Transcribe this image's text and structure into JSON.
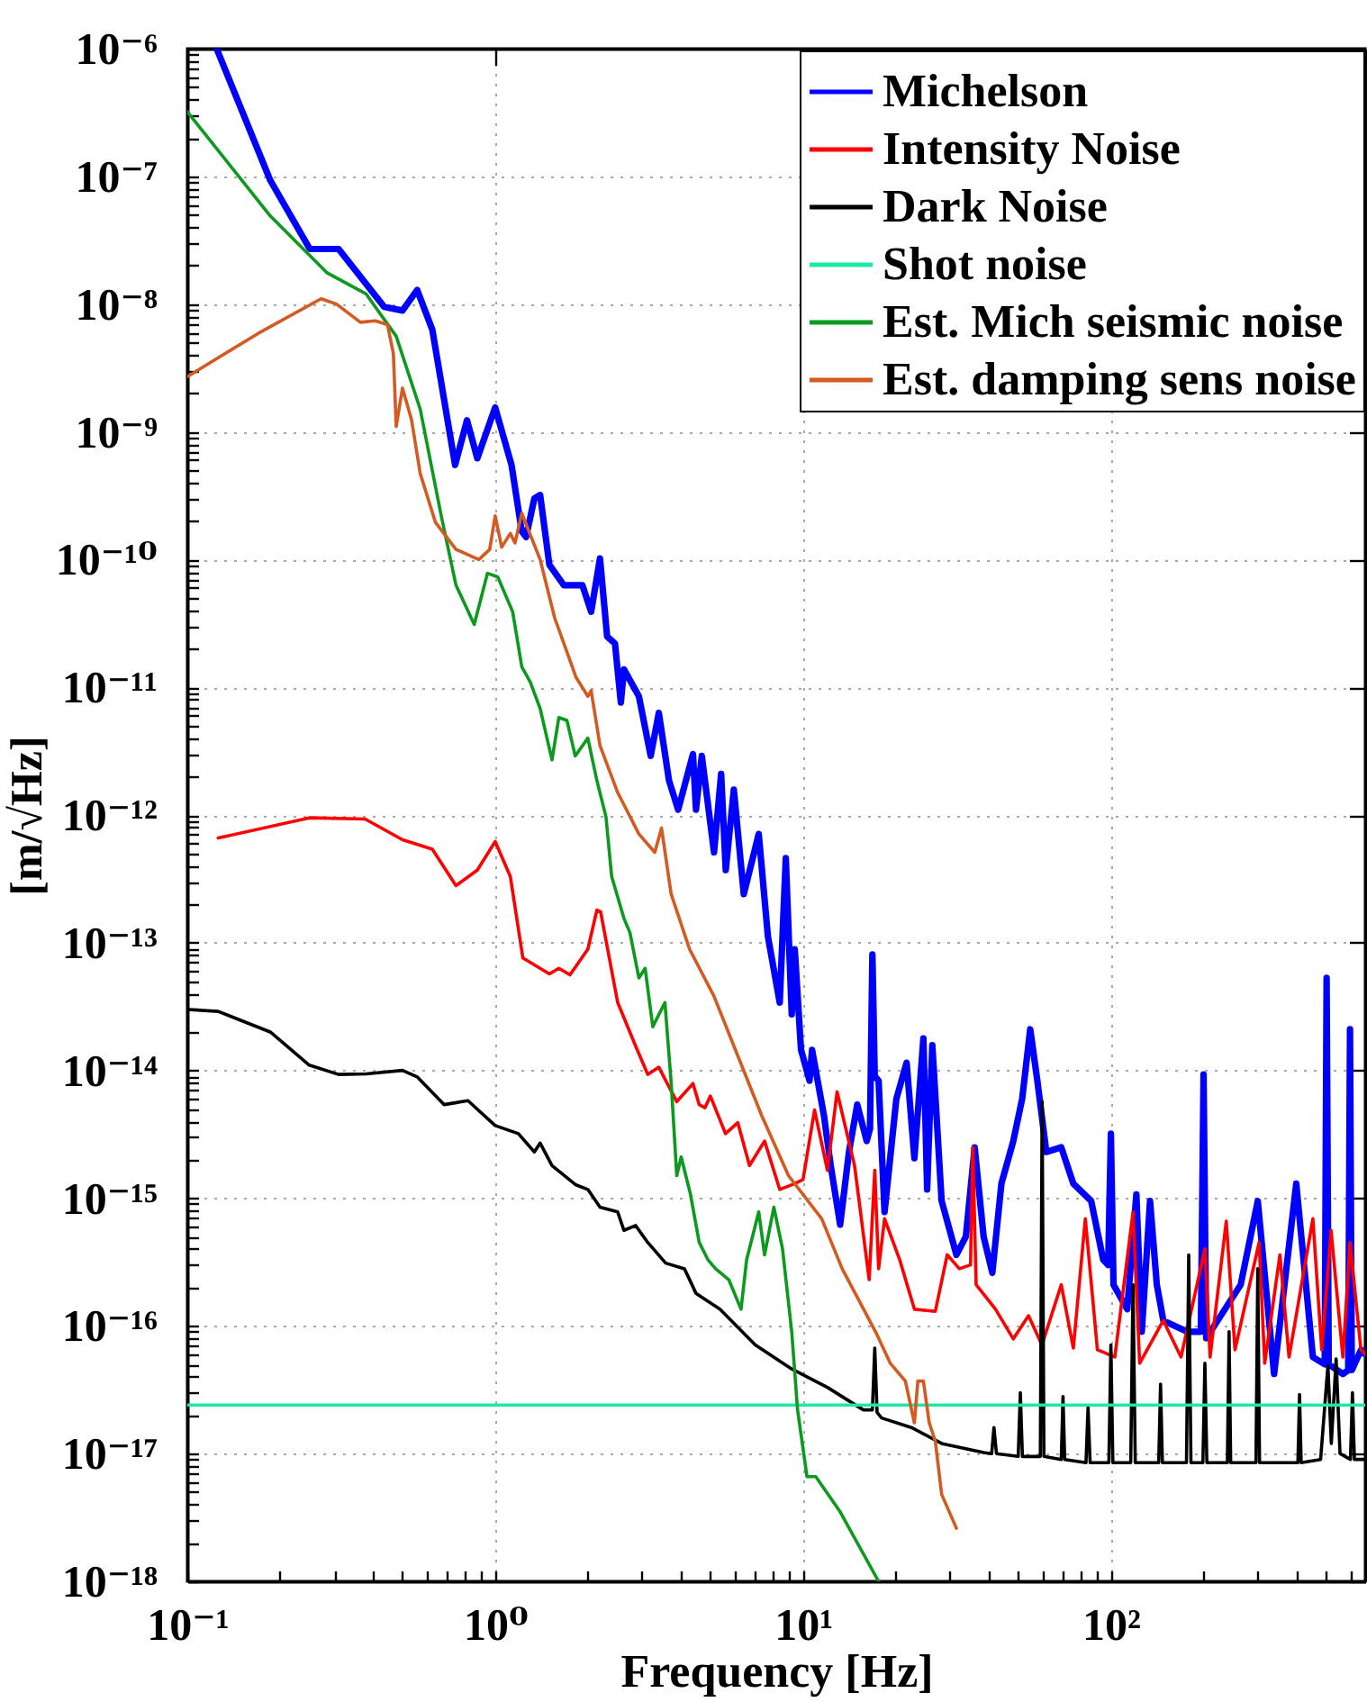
{
  "chart_data": {
    "type": "line",
    "xlabel": "Frequency [Hz]",
    "ylabel": "[m/√Hz]",
    "log": "xy",
    "grid": true,
    "legend": "top right",
    "xlim": [
      0.1,
      670
    ],
    "ylim": [
      1e-18,
      1e-06
    ],
    "xticks": [
      {
        "value": 0.1,
        "label": "10⁻¹"
      },
      {
        "value": 0.2,
        "label": null
      },
      {
        "value": 0.3,
        "label": null
      },
      {
        "value": 0.4,
        "label": null
      },
      {
        "value": 0.5,
        "label": null
      },
      {
        "value": 0.6,
        "label": null
      },
      {
        "value": 0.7,
        "label": null
      },
      {
        "value": 0.8,
        "label": null
      },
      {
        "value": 0.9,
        "label": null
      },
      {
        "value": 1,
        "label": "10⁰"
      },
      {
        "value": 2,
        "label": null
      },
      {
        "value": 3,
        "label": null
      },
      {
        "value": 4,
        "label": null
      },
      {
        "value": 5,
        "label": null
      },
      {
        "value": 6,
        "label": null
      },
      {
        "value": 7,
        "label": null
      },
      {
        "value": 8,
        "label": null
      },
      {
        "value": 9,
        "label": null
      },
      {
        "value": 10,
        "label": "10¹"
      },
      {
        "value": 20,
        "label": null
      },
      {
        "value": 30,
        "label": null
      },
      {
        "value": 40,
        "label": null
      },
      {
        "value": 50,
        "label": null
      },
      {
        "value": 60,
        "label": null
      },
      {
        "value": 70,
        "label": null
      },
      {
        "value": 80,
        "label": null
      },
      {
        "value": 90,
        "label": null
      },
      {
        "value": 100,
        "label": "10²"
      },
      {
        "value": 200,
        "label": null
      },
      {
        "value": 300,
        "label": null
      },
      {
        "value": 400,
        "label": null
      },
      {
        "value": 500,
        "label": null
      },
      {
        "value": 600,
        "label": null
      }
    ],
    "yticks": [
      {
        "value": 1e-18,
        "label": "10⁻¹⁸"
      },
      {
        "value": 2e-18,
        "label": null
      },
      {
        "value": 3e-18,
        "label": null
      },
      {
        "value": 4e-18,
        "label": null
      },
      {
        "value": 5e-18,
        "label": null
      },
      {
        "value": 6e-18,
        "label": null
      },
      {
        "value": 7e-18,
        "label": null
      },
      {
        "value": 8e-18,
        "label": null
      },
      {
        "value": 9e-18,
        "label": null
      },
      {
        "value": 1e-17,
        "label": "10⁻¹⁷"
      },
      {
        "value": 2e-17,
        "label": null
      },
      {
        "value": 3e-17,
        "label": null
      },
      {
        "value": 4e-17,
        "label": null
      },
      {
        "value": 5e-17,
        "label": null
      },
      {
        "value": 6e-17,
        "label": null
      },
      {
        "value": 7e-17,
        "label": null
      },
      {
        "value": 8e-17,
        "label": null
      },
      {
        "value": 9e-17,
        "label": null
      },
      {
        "value": 1e-16,
        "label": "10⁻¹⁶"
      },
      {
        "value": 2e-16,
        "label": null
      },
      {
        "value": 3e-16,
        "label": null
      },
      {
        "value": 4e-16,
        "label": null
      },
      {
        "value": 5e-16,
        "label": null
      },
      {
        "value": 6e-16,
        "label": null
      },
      {
        "value": 7e-16,
        "label": null
      },
      {
        "value": 8e-16,
        "label": null
      },
      {
        "value": 9e-16,
        "label": null
      },
      {
        "value": 1e-15,
        "label": "10⁻¹⁵"
      },
      {
        "value": 2e-15,
        "label": null
      },
      {
        "value": 3e-15,
        "label": null
      },
      {
        "value": 4e-15,
        "label": null
      },
      {
        "value": 5e-15,
        "label": null
      },
      {
        "value": 6e-15,
        "label": null
      },
      {
        "value": 7e-15,
        "label": null
      },
      {
        "value": 8e-15,
        "label": null
      },
      {
        "value": 9e-15,
        "label": null
      },
      {
        "value": 1e-14,
        "label": "10⁻¹⁴"
      },
      {
        "value": 2e-14,
        "label": null
      },
      {
        "value": 3e-14,
        "label": null
      },
      {
        "value": 4e-14,
        "label": null
      },
      {
        "value": 5e-14,
        "label": null
      },
      {
        "value": 6e-14,
        "label": null
      },
      {
        "value": 7e-14,
        "label": null
      },
      {
        "value": 8e-14,
        "label": null
      },
      {
        "value": 9e-14,
        "label": null
      },
      {
        "value": 1e-13,
        "label": "10⁻¹³"
      },
      {
        "value": 2e-13,
        "label": null
      },
      {
        "value": 3e-13,
        "label": null
      },
      {
        "value": 4e-13,
        "label": null
      },
      {
        "value": 5e-13,
        "label": null
      },
      {
        "value": 6e-13,
        "label": null
      },
      {
        "value": 7e-13,
        "label": null
      },
      {
        "value": 8e-13,
        "label": null
      },
      {
        "value": 9e-13,
        "label": null
      },
      {
        "value": 1e-12,
        "label": "10⁻¹²"
      },
      {
        "value": 2e-12,
        "label": null
      },
      {
        "value": 3e-12,
        "label": null
      },
      {
        "value": 4e-12,
        "label": null
      },
      {
        "value": 5e-12,
        "label": null
      },
      {
        "value": 6e-12,
        "label": null
      },
      {
        "value": 7e-12,
        "label": null
      },
      {
        "value": 8e-12,
        "label": null
      },
      {
        "value": 9e-12,
        "label": null
      },
      {
        "value": 1e-11,
        "label": "10⁻¹¹"
      },
      {
        "value": 2e-11,
        "label": null
      },
      {
        "value": 3e-11,
        "label": null
      },
      {
        "value": 4e-11,
        "label": null
      },
      {
        "value": 5e-11,
        "label": null
      },
      {
        "value": 6e-11,
        "label": null
      },
      {
        "value": 7e-11,
        "label": null
      },
      {
        "value": 8e-11,
        "label": null
      },
      {
        "value": 9e-11,
        "label": null
      },
      {
        "value": 1e-10,
        "label": "10⁻¹⁰"
      },
      {
        "value": 2e-10,
        "label": null
      },
      {
        "value": 3e-10,
        "label": null
      },
      {
        "value": 4e-10,
        "label": null
      },
      {
        "value": 5e-10,
        "label": null
      },
      {
        "value": 6e-10,
        "label": null
      },
      {
        "value": 7e-10,
        "label": null
      },
      {
        "value": 8e-10,
        "label": null
      },
      {
        "value": 9e-10,
        "label": null
      },
      {
        "value": 1e-09,
        "label": "10⁻⁹"
      },
      {
        "value": 2e-09,
        "label": null
      },
      {
        "value": 3e-09,
        "label": null
      },
      {
        "value": 4e-09,
        "label": null
      },
      {
        "value": 5e-09,
        "label": null
      },
      {
        "value": 6e-09,
        "label": null
      },
      {
        "value": 7e-09,
        "label": null
      },
      {
        "value": 8e-09,
        "label": null
      },
      {
        "value": 9e-09,
        "label": null
      },
      {
        "value": 1e-08,
        "label": "10⁻⁸"
      },
      {
        "value": 2e-08,
        "label": null
      },
      {
        "value": 3e-08,
        "label": null
      },
      {
        "value": 4e-08,
        "label": null
      },
      {
        "value": 5e-08,
        "label": null
      },
      {
        "value": 6e-08,
        "label": null
      },
      {
        "value": 7e-08,
        "label": null
      },
      {
        "value": 8e-08,
        "label": null
      },
      {
        "value": 9e-08,
        "label": null
      },
      {
        "value": 1e-07,
        "label": "10⁻⁷"
      },
      {
        "value": 2e-07,
        "label": null
      },
      {
        "value": 3e-07,
        "label": null
      },
      {
        "value": 4e-07,
        "label": null
      },
      {
        "value": 5e-07,
        "label": null
      },
      {
        "value": 6e-07,
        "label": null
      },
      {
        "value": 7e-07,
        "label": null
      },
      {
        "value": 8e-07,
        "label": null
      },
      {
        "value": 9e-07,
        "label": null
      },
      {
        "value": 1e-06,
        "label": "10⁻⁶"
      }
    ],
    "series": [
      {
        "name": "Michelson",
        "color": "#0000ff",
        "x": [
          0.1245,
          0.186,
          0.25,
          0.31,
          0.436,
          0.5,
          0.558,
          0.625,
          0.741,
          0.81,
          0.875,
          1.0,
          1.13,
          1.22,
          1.26,
          1.34,
          1.4,
          1.5,
          1.67,
          1.92,
          2.05,
          2.19,
          2.31,
          2.45,
          2.56,
          2.62,
          2.93,
          3.2,
          3.4,
          3.67,
          3.93,
          4.39,
          4.49,
          4.69,
          5.14,
          5.42,
          5.61,
          5.96,
          6.42,
          7.18,
          7.69,
          8.4,
          8.79,
          9.19,
          9.4,
          9.85,
          10.5,
          10.7,
          11.7,
          12.3,
          13.2,
          14.1,
          15.0,
          16.1,
          16.5,
          16.8,
          17.1,
          17.6,
          18.4,
          20.1,
          21.7,
          23.0,
          24.6,
          25.3,
          26.3,
          28.2,
          31.5,
          33.8,
          36.1,
          38.6,
          41.2,
          44.1,
          48.2,
          51.5,
          54.7,
          57.7,
          61.7,
          69,
          75.5,
          86.3,
          94.4,
          98,
          100,
          102,
          113,
          121,
          126,
          134,
          141,
          148,
          177,
          196,
          200,
          204,
          264,
          300,
          339,
          400,
          453,
          495,
          502,
          510,
          567,
          590,
          598,
          606,
          650,
          670
        ],
        "values": [
          1e-06,
          9.3e-08,
          2.7e-08,
          2.7e-08,
          9.5e-09,
          8.9e-09,
          1.29e-08,
          6.3e-09,
          5.5e-10,
          1.23e-09,
          6.2e-10,
          1.55e-09,
          5.5e-10,
          1.66e-10,
          1.5e-10,
          3e-10,
          3.2e-10,
          9.1e-11,
          6.3e-11,
          6.3e-11,
          3.9e-11,
          1.02e-10,
          2.5e-11,
          2.2e-11,
          7.6e-12,
          1.38e-11,
          8.5e-12,
          2.9e-12,
          6.3e-12,
          1.86e-12,
          1.1e-12,
          3e-12,
          1.1e-12,
          2.9e-12,
          5.1e-13,
          2.1e-12,
          3.7e-13,
          1.58e-12,
          2.4e-13,
          7.1e-13,
          1.12e-13,
          3.4e-14,
          4.6e-13,
          2.75e-14,
          8.9e-14,
          1.45e-14,
          8.3e-15,
          1.45e-14,
          4.4e-15,
          1.8e-15,
          6.2e-16,
          2.3e-15,
          5.4e-15,
          2.8e-15,
          3.5e-15,
          8.1e-14,
          9e-15,
          8.3e-15,
          7.8e-16,
          6e-15,
          1.15e-14,
          2.05e-15,
          1.78e-14,
          1.17e-15,
          1.58e-14,
          9.5e-16,
          3.6e-16,
          5e-16,
          2.5e-15,
          5e-16,
          2.6e-16,
          1.3e-15,
          2.8e-15,
          6e-15,
          2.1e-14,
          8.3e-15,
          2.3e-15,
          2.5e-15,
          1.3e-15,
          9.5e-16,
          3.3e-16,
          3e-16,
          3.2e-15,
          2.1e-16,
          1.35e-16,
          1.07e-15,
          9e-17,
          9.5e-16,
          2.1e-16,
          1.1e-16,
          9e-17,
          9e-17,
          9.3e-15,
          8e-17,
          2.1e-16,
          9.5e-16,
          4.2e-17,
          1.3e-15,
          5.7e-17,
          5e-17,
          5.3e-14,
          5e-17,
          4.2e-17,
          4.5e-17,
          2.1e-14,
          4.5e-17,
          6.5e-17,
          6e-17
        ]
      },
      {
        "name": "Intensity Noise",
        "color": "#ff0000",
        "x": [
          0.126,
          0.249,
          0.378,
          0.5,
          0.625,
          0.746,
          0.875,
          1.0,
          1.12,
          1.23,
          1.5,
          1.61,
          1.75,
          2.0,
          2.14,
          2.2,
          2.5,
          2.85,
          3.13,
          3.4,
          3.89,
          4.39,
          4.6,
          4.8,
          5.0,
          5.6,
          6.14,
          6.7,
          7.5,
          8.4,
          9.4,
          10,
          10.9,
          12.0,
          12.9,
          14.7,
          16.4,
          17.1,
          17.6,
          18.4,
          20.6,
          23.0,
          26.9,
          29.4,
          32.2,
          35,
          35.6,
          36.5,
          42.2,
          48.2,
          54,
          59.7,
          69,
          75.5,
          82.6,
          90.4,
          103,
          118,
          124,
          148,
          169,
          202,
          210,
          237,
          253,
          303,
          316,
          354,
          379,
          453,
          484,
          519,
          567,
          598,
          649,
          670
        ],
        "values": [
          6.6e-13,
          9.5e-13,
          9.3e-13,
          6.4e-13,
          5.4e-13,
          2.8e-13,
          3.7e-13,
          6.2e-13,
          3.3e-13,
          7.6e-14,
          5.7e-14,
          6.3e-14,
          5.6e-14,
          8.9e-14,
          1.8e-13,
          1.75e-13,
          3.4e-14,
          1.58e-14,
          9.3e-15,
          1.06e-14,
          5.7e-15,
          7.9e-15,
          5.4e-15,
          5.1e-15,
          6.3e-15,
          3.2e-15,
          3.9e-15,
          1.8e-15,
          2.8e-15,
          1.17e-15,
          1.3e-15,
          1.4e-15,
          4.9e-15,
          1.65e-15,
          6.8e-15,
          1.8e-15,
          2.3e-16,
          1.65e-15,
          2.8e-16,
          6.9e-16,
          3.3e-16,
          1.35e-16,
          1.3e-16,
          3.6e-16,
          2.8e-16,
          3e-16,
          2.5e-15,
          2.1e-16,
          1.35e-16,
          7.9e-17,
          1.2e-16,
          7.1e-17,
          2.1e-16,
          6.7e-17,
          6.9e-16,
          6.5e-17,
          5.7e-17,
          7.8e-16,
          5.1e-17,
          1.1e-16,
          5.7e-17,
          4e-16,
          5.7e-17,
          6.6e-16,
          6.5e-17,
          4.5e-16,
          5.1e-17,
          3.6e-16,
          5.7e-17,
          6.9e-16,
          6.5e-17,
          5.6e-16,
          5.7e-17,
          4.5e-16,
          6.5e-17,
          6e-17
        ]
      },
      {
        "name": "Dark Noise",
        "color": "#000000",
        "x": [
          0.1,
          0.126,
          0.186,
          0.249,
          0.31,
          0.381,
          0.5,
          0.558,
          0.682,
          0.816,
          1.0,
          1.19,
          1.34,
          1.4,
          1.53,
          1.83,
          2.0,
          2.19,
          2.5,
          2.62,
          2.86,
          3.13,
          3.58,
          4.12,
          4.49,
          5.37,
          7.0,
          9.19,
          12.0,
          15.7,
          16.8,
          17.1,
          17.4,
          18.0,
          22.5,
          28.2,
          38.6,
          41.0,
          41.7,
          42.5,
          50.0,
          50.8,
          51.6,
          59.0,
          59.8,
          60.6,
          69.0,
          69.9,
          70.8,
          83,
          84.3,
          85.6,
          98.5,
          100,
          101.5,
          116,
          118,
          120,
          143,
          145,
          147,
          176,
          179,
          182,
          199,
          202,
          205,
          239,
          242,
          245,
          296,
          300,
          304,
          405,
          410,
          415,
          480,
          507,
          520,
          539,
          555,
          600,
          609,
          618,
          670
        ],
        "values": [
          3e-14,
          2.9e-14,
          2e-14,
          1.1e-14,
          9.3e-15,
          9.4e-15,
          1e-14,
          8.9e-15,
          5.4e-15,
          5.8e-15,
          3.7e-15,
          3.2e-15,
          2.3e-15,
          2.7e-15,
          1.8e-15,
          1.27e-15,
          1.17e-15,
          8.5e-16,
          7.8e-16,
          5.6e-16,
          6.1e-16,
          4.5e-16,
          3.1e-16,
          2.8e-16,
          1.8e-16,
          1.35e-16,
          7.1e-17,
          4.6e-17,
          3.3e-17,
          2.2e-17,
          2.2e-17,
          6.7e-17,
          2.1e-17,
          1.9e-17,
          1.6e-17,
          1.2e-17,
          1.02e-17,
          1e-17,
          1.6e-17,
          1e-17,
          9.5e-18,
          3e-17,
          9.5e-18,
          9.5e-18,
          5.7e-15,
          9.5e-18,
          9e-18,
          2.8e-17,
          9e-18,
          8.5e-18,
          2.3e-17,
          8.5e-18,
          8.5e-18,
          7.1e-17,
          8.5e-18,
          8.5e-18,
          2.1e-16,
          8.5e-18,
          8.5e-18,
          3.5e-17,
          8.5e-18,
          8.5e-18,
          3.6e-16,
          8.5e-18,
          8.5e-18,
          5.1e-17,
          8.5e-18,
          8.5e-18,
          9e-17,
          8.5e-18,
          8.5e-18,
          2.8e-16,
          8.5e-18,
          8.5e-18,
          2.9e-17,
          8.5e-18,
          9e-18,
          4.9e-17,
          1.2e-17,
          5.5e-17,
          1e-17,
          9e-18,
          3e-17,
          9e-18,
          9e-18
        ]
      },
      {
        "name": "Shot noise",
        "color": "#1de9a6",
        "x": [
          0.1,
          670
        ],
        "values": [
          2.4e-17,
          2.4e-17
        ]
      },
      {
        "name": "Est. Mich seismic noise",
        "color": "#0c9a1e",
        "x": [
          0.1,
          0.186,
          0.285,
          0.381,
          0.477,
          0.571,
          0.668,
          0.746,
          0.855,
          0.944,
          1.02,
          1.14,
          1.22,
          1.3,
          1.4,
          1.53,
          1.61,
          1.71,
          1.82,
          2.0,
          2.14,
          2.29,
          2.39,
          2.62,
          2.74,
          2.93,
          3.07,
          3.25,
          3.56,
          3.73,
          3.89,
          4.02,
          4.31,
          4.6,
          4.91,
          5.2,
          5.74,
          6.29,
          6.56,
          7.18,
          7.5,
          8.04,
          8.58,
          9.19,
          9.6,
          10.3,
          11.0,
          13.2,
          17.6
        ],
        "values": [
          3.2e-07,
          4.9e-08,
          1.75e-08,
          1.2e-08,
          5.6e-09,
          1.5e-09,
          2.2e-10,
          6.3e-11,
          3.1e-11,
          7.8e-11,
          7.3e-11,
          3.9e-11,
          1.45e-11,
          1.1e-11,
          6.8e-12,
          2.7e-12,
          5.8e-12,
          5.5e-12,
          2.9e-12,
          4e-12,
          1.86e-12,
          9.7e-13,
          3.3e-13,
          1.55e-13,
          1.2e-13,
          5.3e-14,
          6.3e-14,
          2.2e-14,
          3.4e-14,
          8e-15,
          1.5e-15,
          2.1e-15,
          1.07e-15,
          4.5e-16,
          3.3e-16,
          2.8e-16,
          2.3e-16,
          1.35e-16,
          3.3e-16,
          7.8e-16,
          3.6e-16,
          8.5e-16,
          4e-16,
          9e-17,
          2.2e-17,
          6.6e-18,
          6.6e-18,
          3.5e-18,
          1e-18
        ]
      },
      {
        "name": "Est. damping sens noise",
        "color": "#d35a20",
        "x": [
          0.1,
          0.17,
          0.272,
          0.305,
          0.365,
          0.408,
          0.447,
          0.467,
          0.477,
          0.5,
          0.535,
          0.571,
          0.64,
          0.746,
          0.885,
          0.96,
          1.0,
          1.05,
          1.12,
          1.16,
          1.22,
          1.4,
          1.56,
          1.83,
          2.0,
          2.05,
          2.19,
          2.5,
          2.93,
          3.3,
          3.47,
          3.73,
          4.28,
          5.14,
          6.14,
          7.35,
          8.97,
          11.5,
          13.4,
          17.2,
          19.2,
          21.5,
          23.0,
          23.6,
          24.6,
          25.7,
          26.9,
          28.2,
          31.5
        ],
        "values": [
          2.7e-09,
          5.9e-09,
          1.1e-08,
          1e-08,
          7.2e-09,
          7.4e-09,
          6.9e-09,
          4.1e-09,
          1.1e-09,
          2.2e-09,
          1.24e-09,
          4.7e-10,
          1.95e-10,
          1.2e-10,
          1e-10,
          1.2e-10,
          2.2e-10,
          1.25e-10,
          1.6e-10,
          1.35e-10,
          2.3e-10,
          1e-10,
          3.5e-11,
          1.2e-11,
          8.5e-12,
          9.4e-12,
          3.5e-12,
          1.5e-12,
          7.1e-13,
          5.1e-13,
          7.9e-13,
          2.4e-13,
          8.9e-14,
          3.8e-14,
          1.3e-14,
          4.4e-15,
          1.5e-15,
          6.9e-16,
          2.8e-16,
          9e-17,
          5.1e-17,
          3.7e-17,
          1.74e-17,
          3.7e-17,
          3.7e-17,
          1.74e-17,
          1.25e-17,
          4.8e-18,
          2.6e-18
        ]
      }
    ]
  }
}
